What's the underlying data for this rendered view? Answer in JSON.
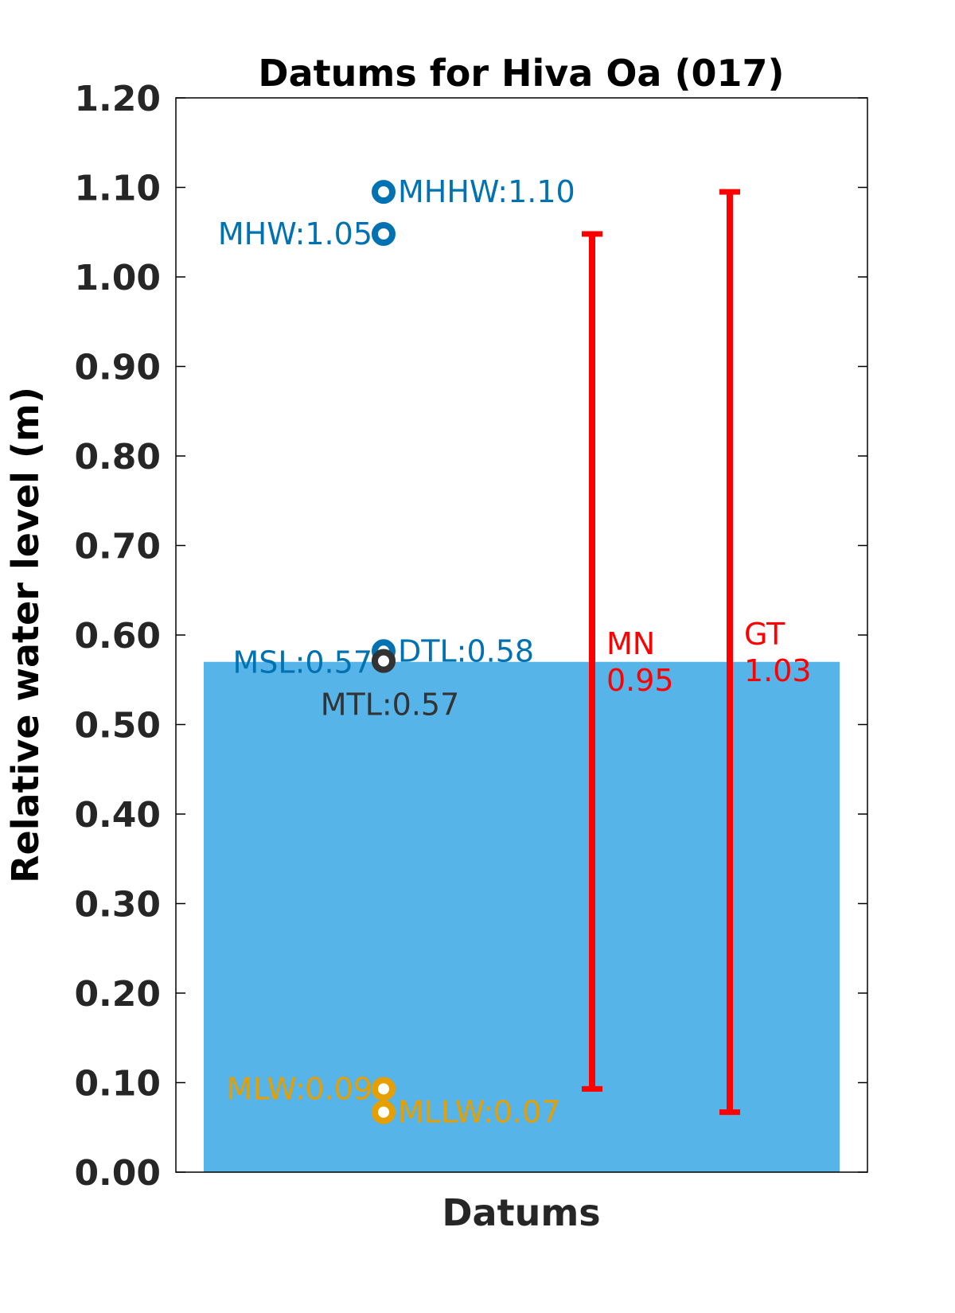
{
  "chart_data": {
    "type": "bar",
    "title": "Datums for Hiva Oa (017)",
    "xlabel": "Datums",
    "ylabel": "Relative water level (m)",
    "ylim": [
      0,
      1.2
    ],
    "yticks": [
      "0.00",
      "0.10",
      "0.20",
      "0.30",
      "0.40",
      "0.50",
      "0.60",
      "0.70",
      "0.80",
      "0.90",
      "1.00",
      "1.10",
      "1.20"
    ],
    "grid": false,
    "bar": {
      "value": 0.57,
      "color": "#56b4e9"
    },
    "datums": [
      {
        "label": "MHHW:1.10",
        "value": 1.095,
        "color": "#0072b2",
        "label_side": "right"
      },
      {
        "label": "MHW:1.05",
        "value": 1.048,
        "color": "#0072b2",
        "label_side": "left"
      },
      {
        "label": "DTL:0.58",
        "value": 0.582,
        "color": "#0072b2",
        "label_side": "right"
      },
      {
        "label": "MSL:0.57",
        "value": 0.571,
        "color": "#0072b2",
        "label_side": "left"
      },
      {
        "label": "MTL:0.57",
        "value": 0.571,
        "color": "#333333",
        "label_side": "below"
      },
      {
        "label": "MLW:0.09",
        "value": 0.093,
        "color": "#e69f00",
        "label_side": "left"
      },
      {
        "label": "MLLW:0.07",
        "value": 0.067,
        "color": "#e69f00",
        "label_side": "right"
      }
    ],
    "ranges": [
      {
        "name": "MN",
        "value_text": "0.95",
        "low": 0.093,
        "high": 1.048,
        "color": "#ff0000"
      },
      {
        "name": "GT",
        "value_text": "1.03",
        "low": 0.067,
        "high": 1.095,
        "color": "#ff0000"
      }
    ]
  }
}
